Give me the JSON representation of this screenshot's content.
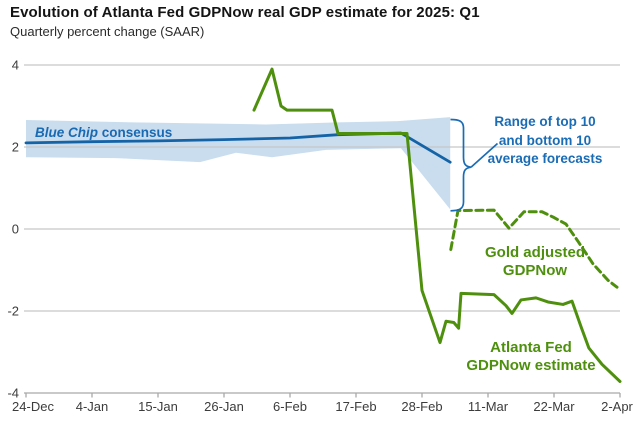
{
  "title": "Evolution of Atlanta Fed GDPNow real GDP estimate for 2025: Q1",
  "subtitle": "Quarterly percent change (SAAR)",
  "labels": {
    "blue_chip_italic": "Blue Chip",
    "blue_chip_rest": " consensus",
    "range_line1": "Range of top 10",
    "range_line2": "and bottom 10",
    "range_line3": "average forecasts",
    "gold_line1": "Gold adjusted",
    "gold_line2": "GDPNow",
    "atlanta_line1": "Atlanta Fed",
    "atlanta_line2": "GDPNow estimate"
  },
  "colors": {
    "green": "#4e900e",
    "blue_line": "#1563a7",
    "band_fill": "#c9ddee",
    "annotation_blue": "#1a6cb5",
    "gridline": "#c6c6c6",
    "axis": "#a9a9a9"
  },
  "chart_data": {
    "type": "line",
    "title": "Evolution of Atlanta Fed GDPNow real GDP estimate for 2025: Q1",
    "subtitle": "Quarterly percent change (SAAR)",
    "grid": true,
    "x_axis": {
      "day0": "24-Dec",
      "ticks": [
        "24-Dec",
        "4-Jan",
        "15-Jan",
        "26-Jan",
        "6-Feb",
        "17-Feb",
        "28-Feb",
        "11-Mar",
        "22-Mar",
        "2-Apr"
      ],
      "tick_days": [
        0,
        11,
        22,
        33,
        44,
        55,
        66,
        77,
        88,
        99
      ]
    },
    "y_axis": {
      "ticks": [
        4,
        2,
        0,
        -2,
        -4
      ],
      "range": [
        -4,
        4
      ]
    },
    "band": {
      "name": "Range of top 10 and bottom 10 average forecasts",
      "fill": "#c9ddee",
      "top_day_value": [
        [
          0,
          2.66
        ],
        [
          18,
          2.6
        ],
        [
          40,
          2.55
        ],
        [
          52,
          2.6
        ],
        [
          62,
          2.63
        ],
        [
          70.7,
          2.73
        ]
      ],
      "bottom_day_value": [
        [
          0,
          1.75
        ],
        [
          15,
          1.73
        ],
        [
          29,
          1.63
        ],
        [
          35,
          1.86
        ],
        [
          41,
          1.75
        ],
        [
          50,
          1.93
        ],
        [
          62.5,
          1.97
        ],
        [
          70.7,
          0.48
        ]
      ]
    },
    "series": [
      {
        "name": "Blue Chip consensus",
        "color": "#1563a7",
        "line_style": "solid",
        "points_day_value": [
          [
            0,
            2.1
          ],
          [
            11,
            2.13
          ],
          [
            22,
            2.15
          ],
          [
            33,
            2.18
          ],
          [
            44,
            2.22
          ],
          [
            52,
            2.3
          ],
          [
            62.5,
            2.34
          ],
          [
            70.7,
            1.63
          ]
        ]
      },
      {
        "name": "Gold adjusted GDPNow",
        "color": "#4e900e",
        "line_style": "dashed",
        "points_day_value": [
          [
            70.8,
            -0.5
          ],
          [
            72,
            0.45
          ],
          [
            78,
            0.46
          ],
          [
            80.5,
            0.02
          ],
          [
            83,
            0.42
          ],
          [
            86,
            0.42
          ],
          [
            88,
            0.28
          ],
          [
            90,
            0.12
          ],
          [
            92,
            -0.3
          ],
          [
            94.5,
            -0.85
          ],
          [
            97,
            -1.25
          ],
          [
            98.5,
            -1.42
          ]
        ]
      },
      {
        "name": "Atlanta Fed GDPNow estimate",
        "color": "#4e900e",
        "line_style": "solid",
        "points_day_value": [
          [
            38,
            2.9
          ],
          [
            41,
            3.9
          ],
          [
            42.5,
            3.0
          ],
          [
            43.5,
            2.9
          ],
          [
            51,
            2.9
          ],
          [
            52,
            2.33
          ],
          [
            63.5,
            2.33
          ],
          [
            66,
            -1.5
          ],
          [
            69,
            -2.77
          ],
          [
            70,
            -2.25
          ],
          [
            71.3,
            -2.28
          ],
          [
            72.1,
            -2.42
          ],
          [
            72.5,
            -1.57
          ],
          [
            78,
            -1.6
          ],
          [
            80,
            -1.87
          ],
          [
            81,
            -2.06
          ],
          [
            82.5,
            -1.73
          ],
          [
            85,
            -1.68
          ],
          [
            87,
            -1.78
          ],
          [
            89.5,
            -1.84
          ],
          [
            91,
            -1.76
          ],
          [
            92.5,
            -2.38
          ],
          [
            93.8,
            -2.9
          ],
          [
            96,
            -3.3
          ],
          [
            99,
            -3.72
          ]
        ]
      }
    ]
  }
}
